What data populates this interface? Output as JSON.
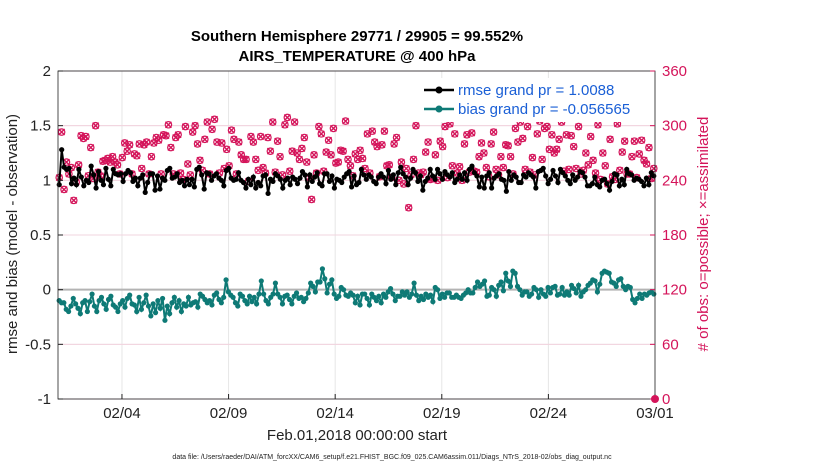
{
  "chart_data": {
    "type": "line",
    "title": "Southern Hemisphere 29771 / 29905 = 99.552%",
    "subtitle": "AIRS_TEMPERATURE @ 400 hPa",
    "xlabel": "Feb.01,2018 00:00:00 start",
    "ylabel": "rmse and bias (model - observation)",
    "y2label": "# of obs: o=possible; ×=assimilated",
    "footnote": "data file: /Users/raeder/DAI/ATM_forcXX/CAM6_setup/f.e21.FHIST_BGC.f09_025.CAM6assim.011/Diags_NTrS_2018-02/obs_diag_output.nc",
    "xlim": [
      0,
      28
    ],
    "ylim": [
      -1,
      2
    ],
    "y2lim": [
      0,
      360
    ],
    "x_ticks": [
      3,
      8,
      13,
      18,
      23,
      28
    ],
    "x_tick_labels": [
      "02/04",
      "02/09",
      "02/14",
      "02/19",
      "02/24",
      "03/01"
    ],
    "y_ticks": [
      -1,
      -0.5,
      0,
      0.5,
      1,
      1.5,
      2
    ],
    "y_tick_labels": [
      "-1",
      "-0.5",
      "0",
      "0.5",
      "1",
      "1.5",
      "2"
    ],
    "y2_ticks": [
      0,
      60,
      120,
      180,
      240,
      300,
      360
    ],
    "y2_tick_labels": [
      "0",
      "60",
      "120",
      "180",
      "240",
      "300",
      "360"
    ],
    "grid": true,
    "legend_position": "top-right",
    "series": [
      {
        "name": "rmse grand pr = 1.0088",
        "color": "#000000",
        "axis": "left",
        "values": [
          0.96,
          1.28,
          1.12,
          1.1,
          1.11,
          0.97,
          1.02,
          0.96,
          1.1,
          1.03,
          0.95,
          1.0,
          0.98,
          1.13,
          1.05,
          0.93,
          1.08,
          1.0,
          0.96,
          1.11,
          1.01,
          0.95,
          1.1,
          1.06,
          1.05,
          1.06,
          0.99,
          1.06,
          1.09,
          1.07,
          0.99,
          1.02,
          0.95,
          1.02,
          1.05,
          0.89,
          0.98,
          1.06,
          1.06,
          0.91,
          1.04,
          0.92,
          1.02,
          1.0,
          1.09,
          1.11,
          1.02,
          1.03,
          1.06,
          0.98,
          1.0,
          0.95,
          1.01,
          0.96,
          1.01,
          0.94,
          1.1,
          1.12,
          1.05,
          0.92,
          1.07,
          1.06,
          1.0,
          1.04,
          1.06,
          1.02,
          1.0,
          0.95,
          1.09,
          1.11,
          1.02,
          1.0,
          1.01,
          1.07,
          1.0,
          0.98,
          0.93,
          1.01,
          0.96,
          1.03,
          0.93,
          0.98,
          0.95,
          1.04,
          1.05,
          0.88,
          1.01,
          0.99,
          1.06,
          1.04,
          1.01,
          0.93,
          1.0,
          1.02,
          0.96,
          1.03,
          1.01,
          0.97,
          1.02,
          1.08,
          1.05,
          0.94,
          1.05,
          0.99,
          1.03,
          1.07,
          0.97,
          0.95,
          1.06,
          1.06,
          0.99,
          1.04,
          0.93,
          1.01,
          1.0,
          0.98,
          1.03,
          1.06,
          1.08,
          0.94,
          1.04,
          0.96,
          0.98,
          1.1,
          1.05,
          1.01,
          1.05,
          1.03,
          0.99,
          0.97,
          1.03,
          1.06,
          1.03,
          0.97,
          1.09,
          1.01,
          1.05,
          0.96,
          1.07,
          1.12,
          1.06,
          1.03,
          0.96,
          1.02,
          1.1,
          1.07,
          0.99,
          1.04,
          0.91,
          0.99,
          1.02,
          1.1,
          1.04,
          1.01,
          1.1,
          1.06,
          1.01,
          1.08,
          1.05,
          1.03,
          1.07,
          0.98,
          1.01,
          1.05,
          1.01,
          1.07,
          1.0,
          1.1,
          1.13,
          1.07,
          1.04,
          0.94,
          1.03,
          0.93,
          1.04,
          1.07,
          0.93,
          1.02,
          1.04,
          1.06,
          1.01,
          1.0,
          0.9,
          1.08,
          1.0,
          1.05,
          1.03,
          0.98,
          0.98,
          1.05,
          1.03,
          1.07,
          1.05,
          1.03,
          0.93,
          1.08,
          1.09,
          1.11,
          1.04,
          0.97,
          1.01,
          1.09,
          1.04,
          0.98,
          1.1,
          1.07,
          1.04,
          1.0,
          0.97,
          1.05,
          1.0,
          1.03,
          1.08,
          1.07,
          1.03,
          0.95,
          0.95,
          0.97,
          1.03,
          0.96,
          0.94,
          1.0,
          1.01,
          0.97,
          0.91,
          0.99,
          1.06,
          1.05,
          0.95,
          1.01,
          0.96,
          1.1,
          1.06,
          1.05,
          1.0,
          1.02,
          1.01,
          0.99,
          0.95,
          1.02,
          0.96,
          1.07,
          1.04
        ]
      },
      {
        "name": "bias grand pr = -0.056565",
        "color": "#0e7a76",
        "axis": "left",
        "values": [
          -0.1,
          -0.12,
          -0.12,
          -0.18,
          -0.2,
          -0.15,
          -0.08,
          -0.13,
          -0.17,
          -0.22,
          -0.12,
          -0.1,
          -0.2,
          -0.11,
          -0.04,
          -0.15,
          -0.2,
          -0.1,
          -0.07,
          -0.13,
          -0.18,
          -0.09,
          -0.06,
          -0.14,
          -0.16,
          -0.2,
          -0.13,
          -0.1,
          -0.16,
          -0.08,
          -0.05,
          -0.13,
          -0.14,
          -0.2,
          -0.07,
          -0.18,
          -0.12,
          -0.05,
          -0.15,
          -0.24,
          -0.13,
          -0.21,
          -0.1,
          -0.17,
          -0.08,
          -0.28,
          -0.15,
          -0.22,
          -0.12,
          -0.07,
          -0.16,
          -0.1,
          -0.2,
          -0.13,
          -0.15,
          -0.07,
          -0.14,
          -0.12,
          -0.11,
          -0.16,
          -0.04,
          -0.06,
          -0.09,
          -0.12,
          -0.1,
          -0.14,
          -0.05,
          -0.03,
          -0.09,
          -0.12,
          -0.07,
          0.09,
          -0.02,
          -0.05,
          -0.07,
          -0.12,
          -0.15,
          -0.04,
          -0.06,
          -0.1,
          -0.13,
          -0.06,
          -0.11,
          -0.07,
          -0.13,
          -0.04,
          0.08,
          -0.04,
          -0.1,
          -0.13,
          -0.07,
          -0.04,
          0.06,
          -0.04,
          -0.07,
          -0.13,
          -0.06,
          -0.05,
          -0.09,
          -0.13,
          -0.06,
          -0.03,
          -0.08,
          -0.07,
          -0.11,
          -0.08,
          -0.03,
          0.06,
          0.03,
          -0.02,
          0.07,
          0.07,
          0.19,
          0.1,
          -0.03,
          0.05,
          0.09,
          -0.04,
          -0.08,
          -0.06,
          0.02,
          0.0,
          -0.05,
          -0.06,
          -0.03,
          -0.05,
          -0.12,
          -0.06,
          -0.14,
          -0.04,
          -0.04,
          -0.08,
          -0.14,
          -0.04,
          -0.07,
          -0.1,
          -0.06,
          -0.12,
          -0.04,
          -0.07,
          -0.02,
          0.01,
          -0.04,
          -0.1,
          -0.06,
          -0.06,
          -0.02,
          -0.05,
          -0.02,
          -0.07,
          -0.04,
          0.06,
          -0.05,
          -0.1,
          -0.06,
          -0.09,
          -0.04,
          -0.07,
          -0.05,
          -0.11,
          0.02,
          0.0,
          -0.08,
          -0.04,
          -0.07,
          -0.03,
          -0.03,
          -0.07,
          -0.07,
          -0.05,
          -0.07,
          -0.08,
          -0.05,
          -0.03,
          0.0,
          -0.03,
          -0.03,
          0.02,
          0.07,
          0.03,
          0.05,
          0.08,
          -0.06,
          -0.05,
          0.02,
          0.0,
          -0.06,
          0.04,
          0.07,
          -0.01,
          0.15,
          0.08,
          0.03,
          0.17,
          0.15,
          0.03,
          0.0,
          -0.05,
          -0.02,
          -0.02,
          -0.06,
          -0.04,
          0.02,
          0.0,
          -0.07,
          0.0,
          -0.04,
          -0.06,
          0.02,
          -0.03,
          0.02,
          0.03,
          -0.05,
          -0.04,
          0.02,
          -0.05,
          -0.02,
          -0.05,
          0.04,
          0.01,
          -0.03,
          0.04,
          -0.06,
          -0.02,
          0.0,
          0.04,
          0.06,
          0.09,
          0.08,
          -0.02,
          0.05,
          0.15,
          0.17,
          0.16,
          0.15,
          0.07,
          0.06,
          0.03,
          0.09,
          0.1,
          0.03,
          0.0,
          0.03,
          0.02,
          -0.09,
          -0.12,
          -0.08,
          -0.04,
          -0.08,
          -0.04,
          -0.05,
          -0.03,
          -0.02,
          -0.04
        ]
      },
      {
        "name": "obs possible / assimilated",
        "color": "#d4145a",
        "axis": "right",
        "values": [
          243,
          293,
          230,
          260,
          247,
          254,
          218,
          238,
          257,
          289,
          286,
          288,
          245,
          276,
          242,
          300,
          249,
          245,
          261,
          262,
          264,
          260,
          266,
          260,
          257,
          247,
          265,
          281,
          272,
          279,
          247,
          269,
          267,
          280,
          253,
          279,
          282,
          247,
          266,
          281,
          287,
          284,
          247,
          290,
          289,
          301,
          276,
          247,
          287,
          290,
          248,
          241,
          299,
          258,
          246,
          293,
          300,
          280,
          262,
          251,
          285,
          304,
          247,
          296,
          307,
          282,
          248,
          281,
          253,
          274,
          256,
          295,
          285,
          247,
          282,
          268,
          263,
          263,
          239,
          288,
          282,
          263,
          251,
          288,
          254,
          248,
          287,
          272,
          304,
          249,
          283,
          266,
          246,
          301,
          309,
          250,
          272,
          304,
          270,
          263,
          275,
          287,
          260,
          243,
          219,
          268,
          248,
          299,
          291,
          250,
          271,
          284,
          268,
          297,
          259,
          260,
          273,
          272,
          305,
          263,
          256,
          245,
          269,
          263,
          273,
          264,
          253,
          291,
          248,
          294,
          282,
          277,
          244,
          279,
          294,
          256,
          257,
          243,
          280,
          287,
          240,
          260,
          236,
          253,
          210,
          246,
          263,
          300,
          248,
          246,
          249,
          271,
          282,
          241,
          242,
          268,
          240,
          283,
          277,
          299,
          243,
          302,
          256,
          291,
          248,
          255,
          240,
          280,
          290,
          249,
          292,
          250,
          249,
          266,
          281,
          270,
          254,
          244,
          280,
          293,
          252,
          246,
          266,
          254,
          279,
          278,
          266,
          247,
          297,
          282,
          304,
          286,
          252,
          299,
          249,
          265,
          246,
          291,
          305,
          263,
          297,
          299,
          274,
          290,
          270,
          274,
          285,
          304,
          250,
          290,
          252,
          289,
          277,
          253,
          299,
          247,
          251,
          270,
          257,
          288,
          262,
          248,
          301,
          241,
          270,
          256,
          236,
          285,
          244,
          241,
          302,
          251,
          271,
          283,
          247,
          247,
          266,
          283,
          243,
          269,
          284,
          262,
          258,
          276,
          242,
          253
        ]
      }
    ]
  }
}
